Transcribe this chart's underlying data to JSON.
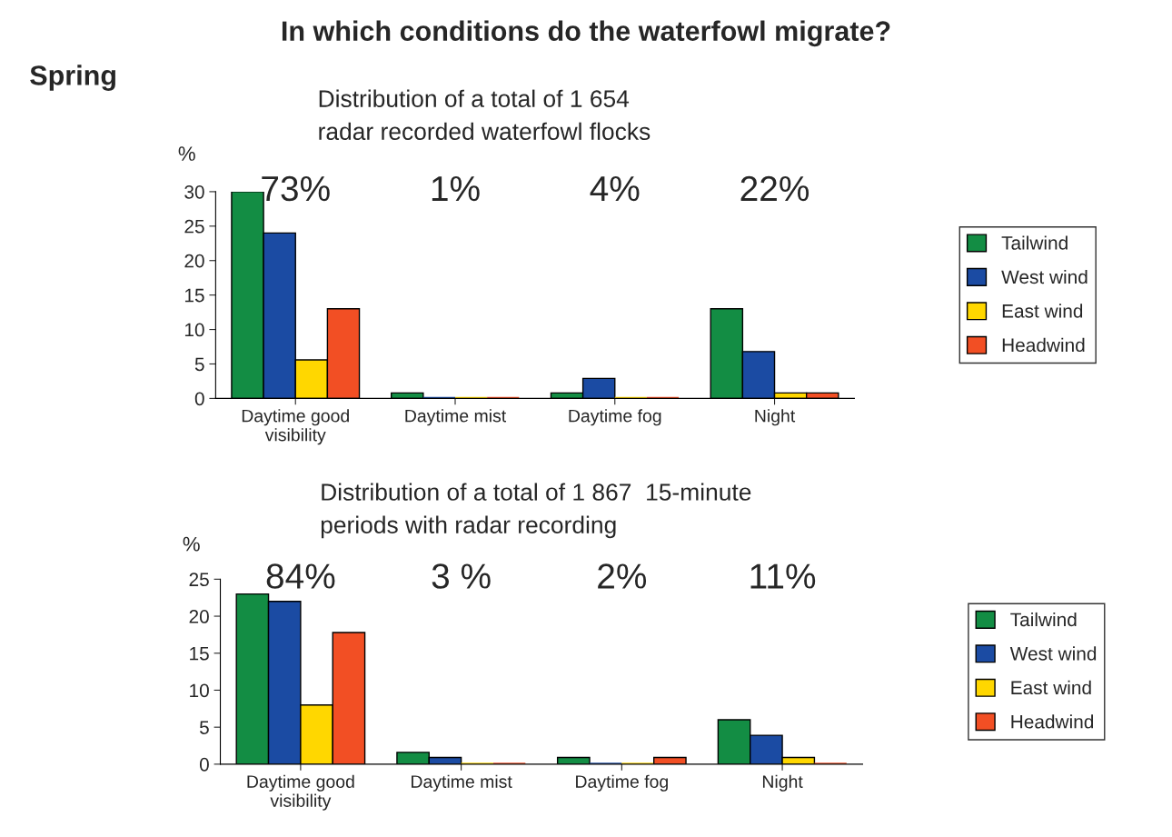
{
  "chart_data": [
    {
      "type": "bar",
      "title": "In which conditions do the waterfowl migrate?",
      "subtitle": "Distribution of a total of 1 654\nradar recorded waterfowl flocks",
      "ylabel": "%",
      "categories": [
        "Daytime good\nvisibility",
        "Daytime mist",
        "Daytime fog",
        "Night"
      ],
      "series": [
        {
          "name": "Tailwind",
          "color": "#138d44",
          "values": [
            30,
            0.8,
            0.8,
            13
          ]
        },
        {
          "name": "West wind",
          "color": "#1b4ba3",
          "values": [
            24,
            0,
            2.9,
            6.8
          ]
        },
        {
          "name": "East wind",
          "color": "#ffd700",
          "values": [
            5.6,
            0,
            0,
            0.8
          ]
        },
        {
          "name": "Headwind",
          "color": "#f24f24",
          "values": [
            13,
            0,
            0,
            0.8
          ]
        }
      ],
      "ylim": [
        0,
        30
      ],
      "yticks": [
        0,
        5,
        10,
        15,
        20,
        25,
        30
      ],
      "grid": false,
      "legend": "right",
      "annotations": [
        "73%",
        "1%",
        "4%",
        "22%",
        "Spring"
      ]
    },
    {
      "type": "bar",
      "title": "Distribution of a total of 1 867  15-minute\nperiods with radar recording",
      "ylabel": "%",
      "categories": [
        "Daytime good\nvisibility",
        "Daytime mist",
        "Daytime fog",
        "Night"
      ],
      "series": [
        {
          "name": "Tailwind",
          "color": "#138d44",
          "values": [
            23,
            1.6,
            0.9,
            6
          ]
        },
        {
          "name": "West wind",
          "color": "#1b4ba3",
          "values": [
            22,
            0.9,
            0,
            3.9
          ]
        },
        {
          "name": "East wind",
          "color": "#ffd700",
          "values": [
            8,
            0,
            0,
            0.9
          ]
        },
        {
          "name": "Headwind",
          "color": "#f24f24",
          "values": [
            17.8,
            0,
            0.9,
            0
          ]
        }
      ],
      "ylim": [
        0,
        25
      ],
      "yticks": [
        0,
        5,
        10,
        15,
        20,
        25
      ],
      "grid": false,
      "legend": "right",
      "annotations": [
        "84%",
        "3 %",
        "2%",
        "11%"
      ]
    }
  ]
}
